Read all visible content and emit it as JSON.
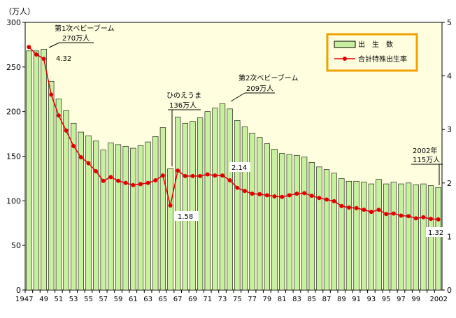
{
  "chart_data": {
    "type": "bar",
    "y_unit": "（万人）",
    "left_axis": {
      "min": 0,
      "max": 300,
      "ticks": [
        0,
        50,
        100,
        150,
        200,
        250,
        300
      ]
    },
    "right_axis": {
      "min": 0,
      "max": 5,
      "ticks": [
        0,
        1,
        2,
        3,
        4,
        5
      ]
    },
    "x": [
      1947,
      1948,
      1949,
      1950,
      1951,
      1952,
      1953,
      1954,
      1955,
      1956,
      1957,
      1958,
      1959,
      1960,
      1961,
      1962,
      1963,
      1964,
      1965,
      1966,
      1967,
      1968,
      1969,
      1970,
      1971,
      1972,
      1973,
      1974,
      1975,
      1976,
      1977,
      1978,
      1979,
      1980,
      1981,
      1982,
      1983,
      1984,
      1985,
      1986,
      1987,
      1988,
      1989,
      1990,
      1991,
      1992,
      1993,
      1994,
      1995,
      1996,
      1997,
      1998,
      1999,
      2000,
      2001,
      2002
    ],
    "x_tick_labels": [
      "1947",
      "49",
      "51",
      "53",
      "55",
      "57",
      "59",
      "61",
      "63",
      "65",
      "67",
      "69",
      "71",
      "73",
      "75",
      "77",
      "79",
      "81",
      "83",
      "85",
      "87",
      "89",
      "91",
      "93",
      "95",
      "97",
      "99",
      "2002"
    ],
    "series": [
      {
        "name": "出　生　数",
        "kind": "bar",
        "axis": "left",
        "color": "#c8f0a0",
        "values": [
          268,
          268,
          270,
          234,
          214,
          201,
          187,
          177,
          173,
          167,
          157,
          165,
          163,
          161,
          159,
          162,
          166,
          172,
          182,
          136,
          194,
          187,
          189,
          193,
          200,
          204,
          209,
          203,
          190,
          183,
          176,
          171,
          164,
          158,
          153,
          152,
          151,
          149,
          143,
          138,
          135,
          131,
          125,
          122,
          122,
          121,
          119,
          124,
          119,
          121,
          119,
          120,
          118,
          119,
          117,
          115
        ]
      },
      {
        "name": "合計特殊出生率",
        "kind": "line",
        "axis": "right",
        "color": "#e00000",
        "values": [
          4.54,
          4.4,
          4.32,
          3.65,
          3.26,
          2.98,
          2.69,
          2.48,
          2.37,
          2.22,
          2.04,
          2.11,
          2.04,
          2.0,
          1.96,
          1.98,
          2.0,
          2.05,
          2.14,
          1.58,
          2.23,
          2.13,
          2.13,
          2.13,
          2.16,
          2.14,
          2.14,
          2.05,
          1.91,
          1.85,
          1.8,
          1.79,
          1.77,
          1.75,
          1.74,
          1.77,
          1.8,
          1.81,
          1.76,
          1.72,
          1.69,
          1.66,
          1.57,
          1.54,
          1.53,
          1.5,
          1.46,
          1.5,
          1.42,
          1.43,
          1.39,
          1.38,
          1.34,
          1.36,
          1.33,
          1.32
        ]
      }
    ],
    "annotations": {
      "boom1_title": "第1次ベビーブーム",
      "boom1_value": "270万人",
      "boom1_rate": "4.32",
      "hinoeuma_title": "ひのえうま",
      "hinoeuma_value": "136万人",
      "hinoeuma_rate": "1.58",
      "boom2_title": "第2次ベビーブーム",
      "boom2_value": "209万人",
      "boom2_rate": "2.14",
      "latest_title": "2002年",
      "latest_value": "115万人",
      "latest_rate": "1.32"
    },
    "legend_position": "top-right",
    "grid": false
  }
}
